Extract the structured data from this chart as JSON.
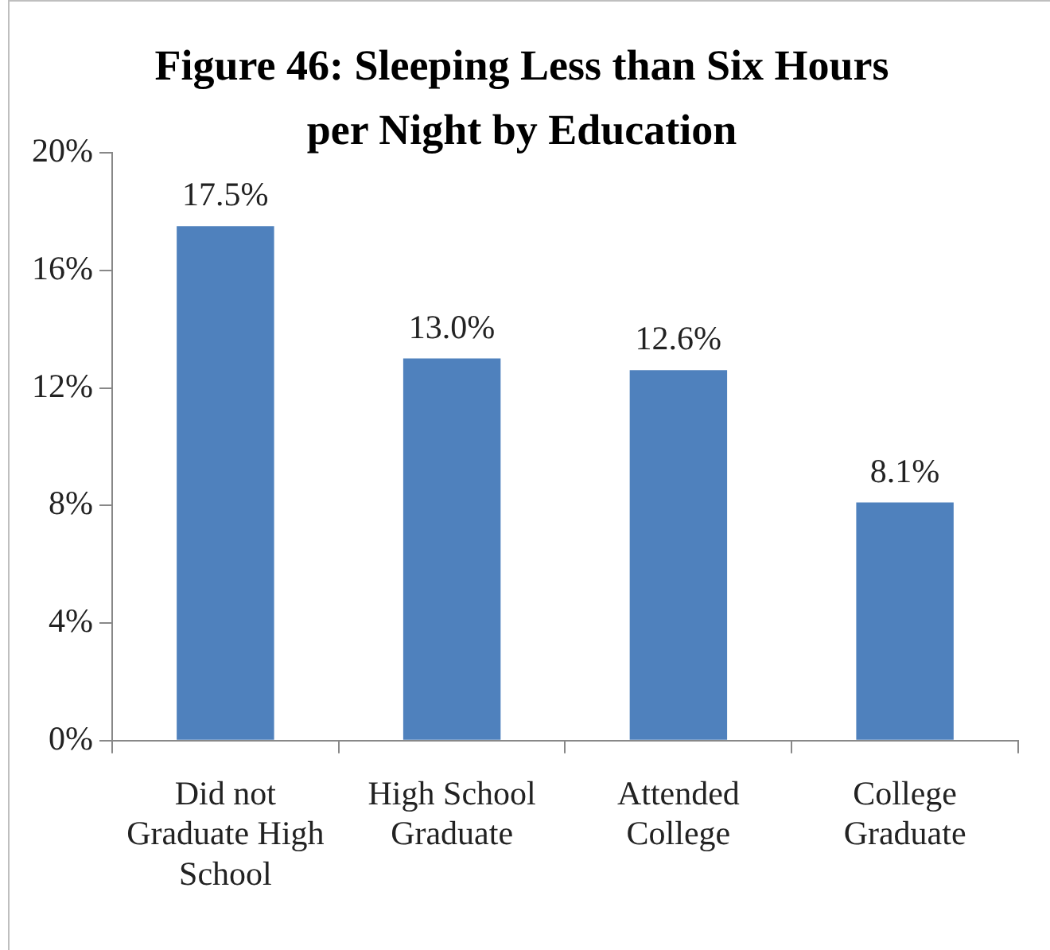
{
  "chart_data": {
    "type": "bar",
    "title": "Figure 46: Sleeping Less than Six Hours per Night by Education",
    "categories": [
      "Did not Graduate High School",
      "High School Graduate",
      "Attended College",
      "College Graduate"
    ],
    "values": [
      17.5,
      13.0,
      12.6,
      8.1
    ],
    "color": "#4f81bd",
    "value_labels": [
      "17.5%",
      "13.0%",
      "12.6%",
      "8.1%"
    ],
    "ylim": [
      0,
      20
    ],
    "yticks": [
      {
        "value": 0,
        "label": "0%"
      },
      {
        "value": 4,
        "label": "4%"
      },
      {
        "value": 8,
        "label": "8%"
      },
      {
        "value": 12,
        "label": "12%"
      },
      {
        "value": 16,
        "label": "16%"
      },
      {
        "value": 20,
        "label": "20%"
      }
    ],
    "grid": false,
    "legend": false
  }
}
